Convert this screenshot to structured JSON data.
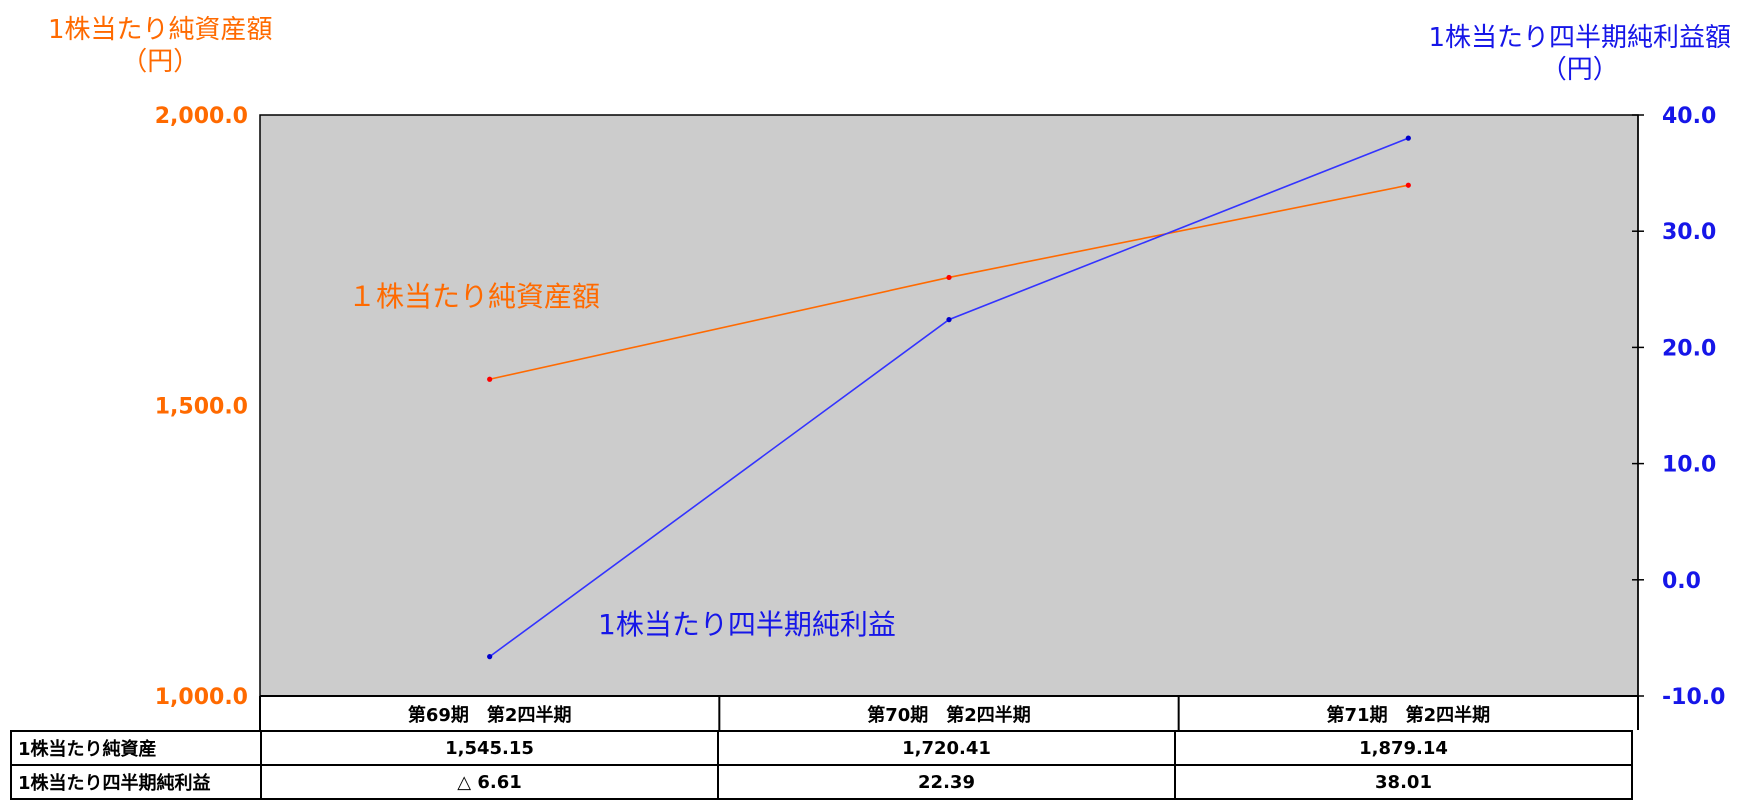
{
  "chart_data": {
    "type": "line",
    "categories": [
      "第69期　第2四半期",
      "第70期　第2四半期",
      "第71期　第2四半期"
    ],
    "series": [
      {
        "name": "1株当たり純資産額",
        "axis": "left",
        "color": "#ff6a00",
        "values": [
          1545.15,
          1720.41,
          1879.14
        ]
      },
      {
        "name": "1株当たり四半期純利益",
        "axis": "right",
        "color": "#3333ff",
        "values": [
          -6.61,
          22.39,
          38.01
        ]
      }
    ],
    "left_axis": {
      "title_line1": "1株当たり純資産額",
      "title_line2": "（円）",
      "ylim": [
        1000,
        2000
      ],
      "ticks": [
        "2,000.0",
        "1,500.0",
        "1,000.0"
      ],
      "tick_values": [
        2000,
        1500,
        1000
      ]
    },
    "right_axis": {
      "title_line1": "1株当たり四半期純利益額",
      "title_line2": "（円）",
      "ylim": [
        -10,
        40
      ],
      "ticks": [
        "40.0",
        "30.0",
        "20.0",
        "10.0",
        "0.0",
        "-10.0"
      ],
      "tick_values": [
        40,
        30,
        20,
        10,
        0,
        -10
      ]
    },
    "annotations": [
      "１株当たり純資産額",
      "1株当たり四半期純利益"
    ],
    "plot_background": "#cccccc",
    "grid": false
  },
  "table": {
    "rows": [
      {
        "label": "1株当たり純資産",
        "values": [
          "1,545.15",
          "1,720.41",
          "1,879.14"
        ]
      },
      {
        "label": "1株当たり四半期純利益",
        "values": [
          "△ 6.61",
          "22.39",
          "38.01"
        ]
      }
    ]
  }
}
